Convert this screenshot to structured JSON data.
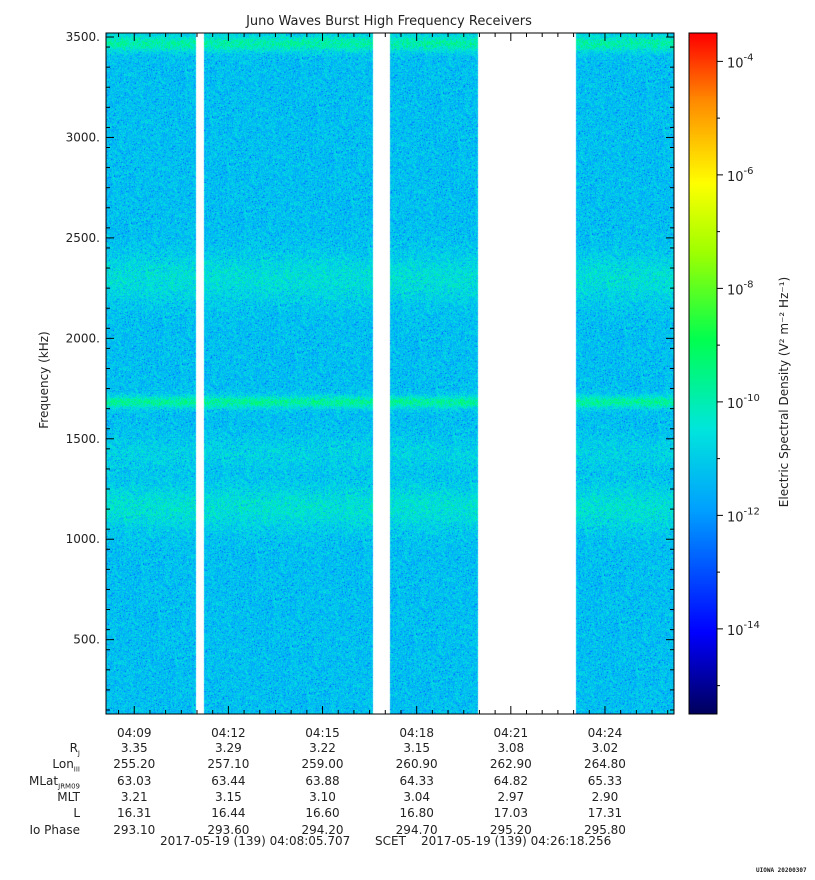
{
  "chart_data": {
    "type": "heatmap",
    "title": "Juno Waves Burst High Frequency Receivers",
    "ylabel": "Frequency (kHz)",
    "ylim": [
      130,
      3520
    ],
    "y_ticks": [
      500,
      1000,
      1500,
      2000,
      2500,
      3000,
      3500
    ],
    "y_tick_labels": [
      "500.",
      "1000.",
      "1500.",
      "2000.",
      "2500.",
      "3000.",
      "3500."
    ],
    "x_tick_labels": [
      "04:09",
      "04:12",
      "04:15",
      "04:18",
      "04:21",
      "04:24"
    ],
    "x_ticks_min": [
      9,
      12,
      15,
      18,
      21,
      24
    ],
    "xlim_min": [
      8.1,
      26.2
    ],
    "data_gaps_min": [
      [
        10.95,
        11.2
      ],
      [
        16.6,
        17.15
      ],
      [
        19.95,
        23.05
      ]
    ],
    "bright_bands_khz": [
      {
        "center": 3470,
        "width": 40,
        "strength": 0.9
      },
      {
        "center": 1685,
        "width": 30,
        "strength": 1.0
      },
      {
        "center": 2300,
        "width": 120,
        "strength": 0.45
      },
      {
        "center": 1160,
        "width": 110,
        "strength": 0.5
      },
      {
        "center": 1430,
        "width": 80,
        "strength": 0.25
      }
    ],
    "colorbar": {
      "label": "Electric Spectral Density (V² m⁻² Hz⁻¹)",
      "tick_exponents": [
        -4,
        -6,
        -8,
        -10,
        -12,
        -14
      ],
      "scale": "log",
      "range_exp": [
        -15.5,
        -3.5
      ]
    },
    "colors": {
      "background": "#40e0d0",
      "low": "#1e90ff",
      "high": "#00ff80"
    }
  },
  "ephemeris": {
    "rows": [
      {
        "label": "R",
        "sub": "J",
        "values": [
          "3.35",
          "3.29",
          "3.22",
          "3.15",
          "3.08",
          "3.02"
        ]
      },
      {
        "label": "Lon",
        "sub": "III",
        "values": [
          "255.20",
          "257.10",
          "259.00",
          "260.90",
          "262.90",
          "264.80"
        ]
      },
      {
        "label": "MLat",
        "sub": "JRM09",
        "values": [
          "63.03",
          "63.44",
          "63.88",
          "64.33",
          "64.82",
          "65.33"
        ]
      },
      {
        "label": "MLT",
        "sub": "",
        "values": [
          "3.21",
          "3.15",
          "3.10",
          "3.04",
          "2.97",
          "2.90"
        ]
      },
      {
        "label": "L",
        "sub": "",
        "values": [
          "16.31",
          "16.44",
          "16.60",
          "16.80",
          "17.03",
          "17.31"
        ]
      },
      {
        "label": "Io Phase",
        "sub": "",
        "values": [
          "293.10",
          "293.60",
          "294.20",
          "294.70",
          "295.20",
          "295.80"
        ]
      }
    ],
    "time_start": "2017-05-19 (139) 04:08:05.707",
    "time_mid": "SCET",
    "time_end": "2017-05-19 (139) 04:26:18.256"
  },
  "stamp": "UIOWA 20200307"
}
